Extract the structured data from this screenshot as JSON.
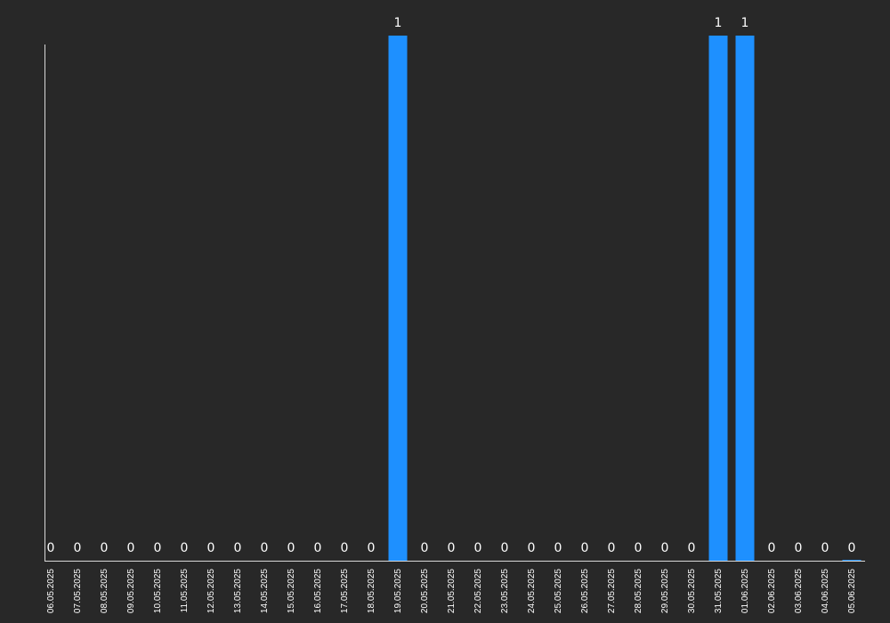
{
  "chart_data": {
    "type": "bar",
    "title": "",
    "xlabel": "",
    "ylabel": "",
    "ylim": [
      0,
      1
    ],
    "grid": false,
    "legend": "none",
    "bar_color": "#1e90ff",
    "categories": [
      "06.05.2025",
      "07.05.2025",
      "08.05.2025",
      "09.05.2025",
      "10.05.2025",
      "11.05.2025",
      "12.05.2025",
      "13.05.2025",
      "14.05.2025",
      "15.05.2025",
      "16.05.2025",
      "17.05.2025",
      "18.05.2025",
      "19.05.2025",
      "20.05.2025",
      "21.05.2025",
      "22.05.2025",
      "23.05.2025",
      "24.05.2025",
      "25.05.2025",
      "26.05.2025",
      "27.05.2025",
      "28.05.2025",
      "29.05.2025",
      "30.05.2025",
      "31.05.2025",
      "01.06.2025",
      "02.06.2025",
      "03.06.2025",
      "04.06.2025",
      "05.06.2025"
    ],
    "values": [
      0,
      0,
      0,
      0,
      0,
      0,
      0,
      0,
      0,
      0,
      0,
      0,
      0,
      1,
      0,
      0,
      0,
      0,
      0,
      0,
      0,
      0,
      0,
      0,
      0,
      1,
      1,
      0,
      0,
      0,
      0
    ],
    "value_labels": [
      "0",
      "0",
      "0",
      "0",
      "0",
      "0",
      "0",
      "0",
      "0",
      "0",
      "0",
      "0",
      "0",
      "1",
      "0",
      "0",
      "0",
      "0",
      "0",
      "0",
      "0",
      "0",
      "0",
      "0",
      "0",
      "1",
      "1",
      "0",
      "0",
      "0",
      "0"
    ]
  }
}
